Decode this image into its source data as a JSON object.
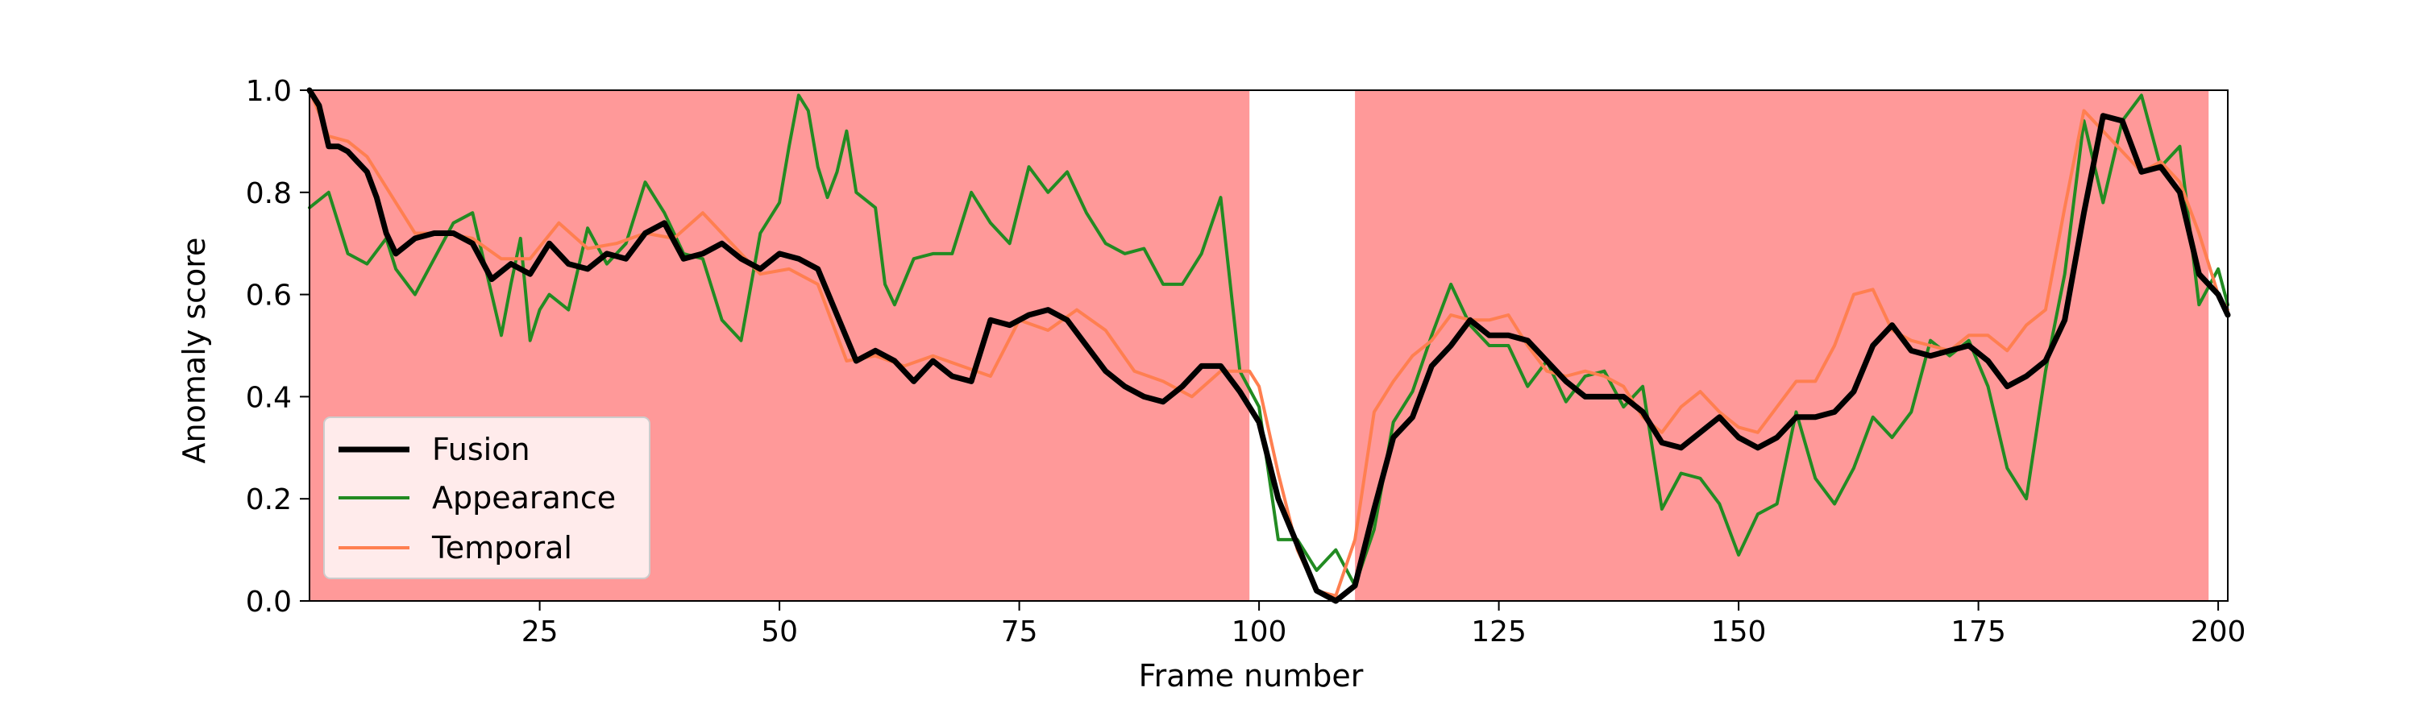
{
  "chart_data": {
    "type": "line",
    "title": "",
    "xlabel": "Frame number",
    "ylabel": "Anomaly score",
    "xlim": [
      1,
      201
    ],
    "ylim": [
      0,
      1
    ],
    "x_ticks": [
      25,
      50,
      75,
      100,
      125,
      150,
      175,
      200
    ],
    "y_ticks": [
      0.0,
      0.2,
      0.4,
      0.6,
      0.8,
      1.0
    ],
    "grid": false,
    "legend_position": "lower-left",
    "anomaly_regions": [
      [
        1,
        99
      ],
      [
        110,
        199
      ]
    ],
    "colors": {
      "region": "#ff9999",
      "fusion": "#000000",
      "appearance": "#228b22",
      "temporal": "#ff7f50"
    },
    "series": [
      {
        "name": "Fusion",
        "x": [
          1,
          2,
          3,
          4,
          5,
          6,
          7,
          8,
          9,
          10,
          12,
          14,
          16,
          18,
          20,
          22,
          24,
          26,
          28,
          30,
          32,
          34,
          36,
          38,
          40,
          42,
          44,
          46,
          48,
          50,
          52,
          54,
          56,
          58,
          60,
          62,
          64,
          66,
          68,
          70,
          72,
          74,
          76,
          78,
          80,
          82,
          84,
          86,
          88,
          90,
          92,
          94,
          96,
          98,
          100,
          102,
          104,
          106,
          108,
          110,
          112,
          114,
          116,
          118,
          120,
          122,
          124,
          126,
          128,
          130,
          132,
          134,
          136,
          138,
          140,
          142,
          144,
          146,
          148,
          150,
          152,
          154,
          156,
          158,
          160,
          162,
          164,
          166,
          168,
          170,
          172,
          174,
          176,
          178,
          180,
          182,
          184,
          186,
          188,
          190,
          192,
          194,
          196,
          198,
          200,
          201
        ],
        "values": [
          1.0,
          0.97,
          0.89,
          0.89,
          0.88,
          0.86,
          0.84,
          0.79,
          0.72,
          0.68,
          0.71,
          0.72,
          0.72,
          0.7,
          0.63,
          0.66,
          0.64,
          0.7,
          0.66,
          0.65,
          0.68,
          0.67,
          0.72,
          0.74,
          0.67,
          0.68,
          0.7,
          0.67,
          0.65,
          0.68,
          0.67,
          0.65,
          0.56,
          0.47,
          0.49,
          0.47,
          0.43,
          0.47,
          0.44,
          0.43,
          0.55,
          0.54,
          0.56,
          0.57,
          0.55,
          0.5,
          0.45,
          0.42,
          0.4,
          0.39,
          0.42,
          0.46,
          0.46,
          0.41,
          0.35,
          0.2,
          0.11,
          0.02,
          0.0,
          0.03,
          0.18,
          0.32,
          0.36,
          0.46,
          0.5,
          0.55,
          0.52,
          0.52,
          0.51,
          0.47,
          0.43,
          0.4,
          0.4,
          0.4,
          0.37,
          0.31,
          0.3,
          0.33,
          0.36,
          0.32,
          0.3,
          0.32,
          0.36,
          0.36,
          0.37,
          0.41,
          0.5,
          0.54,
          0.49,
          0.48,
          0.49,
          0.5,
          0.47,
          0.42,
          0.44,
          0.47,
          0.55,
          0.76,
          0.95,
          0.94,
          0.84,
          0.85,
          0.8,
          0.64,
          0.6,
          0.56
        ]
      },
      {
        "name": "Appearance",
        "x": [
          1,
          3,
          5,
          7,
          9,
          10,
          12,
          14,
          16,
          18,
          20,
          21,
          22,
          23,
          24,
          25,
          26,
          28,
          30,
          32,
          34,
          36,
          38,
          40,
          42,
          44,
          46,
          48,
          50,
          51,
          52,
          53,
          54,
          55,
          56,
          57,
          58,
          60,
          61,
          62,
          64,
          66,
          68,
          70,
          72,
          74,
          76,
          78,
          80,
          82,
          84,
          86,
          88,
          90,
          92,
          94,
          96,
          98,
          100,
          102,
          104,
          106,
          108,
          110,
          112,
          114,
          116,
          118,
          120,
          122,
          124,
          126,
          128,
          130,
          132,
          134,
          136,
          138,
          140,
          142,
          144,
          146,
          148,
          150,
          152,
          154,
          156,
          158,
          160,
          162,
          164,
          166,
          168,
          170,
          172,
          174,
          176,
          178,
          180,
          182,
          184,
          186,
          188,
          190,
          192,
          194,
          196,
          198,
          200,
          201
        ],
        "values": [
          0.77,
          0.8,
          0.68,
          0.66,
          0.71,
          0.65,
          0.6,
          0.67,
          0.74,
          0.76,
          0.6,
          0.52,
          0.62,
          0.71,
          0.51,
          0.57,
          0.6,
          0.57,
          0.73,
          0.66,
          0.7,
          0.82,
          0.76,
          0.68,
          0.67,
          0.55,
          0.51,
          0.72,
          0.78,
          0.89,
          0.99,
          0.96,
          0.85,
          0.79,
          0.84,
          0.92,
          0.8,
          0.77,
          0.62,
          0.58,
          0.67,
          0.68,
          0.68,
          0.8,
          0.74,
          0.7,
          0.85,
          0.8,
          0.84,
          0.76,
          0.7,
          0.68,
          0.69,
          0.62,
          0.62,
          0.68,
          0.79,
          0.45,
          0.38,
          0.12,
          0.12,
          0.06,
          0.1,
          0.03,
          0.14,
          0.35,
          0.41,
          0.52,
          0.62,
          0.54,
          0.5,
          0.5,
          0.42,
          0.47,
          0.39,
          0.44,
          0.45,
          0.38,
          0.42,
          0.18,
          0.25,
          0.24,
          0.19,
          0.09,
          0.17,
          0.19,
          0.37,
          0.24,
          0.19,
          0.26,
          0.36,
          0.32,
          0.37,
          0.51,
          0.48,
          0.51,
          0.42,
          0.26,
          0.2,
          0.45,
          0.64,
          0.94,
          0.78,
          0.94,
          0.99,
          0.85,
          0.89,
          0.58,
          0.65,
          0.58
        ]
      },
      {
        "name": "Temporal",
        "x": [
          1,
          3,
          5,
          7,
          9,
          12,
          15,
          18,
          21,
          24,
          27,
          30,
          33,
          36,
          39,
          42,
          45,
          48,
          51,
          54,
          57,
          60,
          63,
          66,
          69,
          72,
          75,
          78,
          81,
          84,
          87,
          90,
          93,
          96,
          99,
          100,
          102,
          104,
          106,
          108,
          110,
          112,
          114,
          116,
          118,
          120,
          122,
          124,
          126,
          128,
          130,
          132,
          134,
          136,
          138,
          140,
          142,
          144,
          146,
          148,
          150,
          152,
          154,
          156,
          158,
          160,
          162,
          164,
          166,
          168,
          170,
          172,
          174,
          176,
          178,
          180,
          182,
          184,
          186,
          188,
          190,
          192,
          194,
          196,
          198,
          200,
          201
        ],
        "values": [
          1.0,
          0.91,
          0.9,
          0.87,
          0.81,
          0.72,
          0.72,
          0.71,
          0.67,
          0.67,
          0.74,
          0.69,
          0.7,
          0.72,
          0.71,
          0.76,
          0.7,
          0.64,
          0.65,
          0.62,
          0.47,
          0.48,
          0.46,
          0.48,
          0.46,
          0.44,
          0.55,
          0.53,
          0.57,
          0.53,
          0.45,
          0.43,
          0.4,
          0.45,
          0.45,
          0.42,
          0.25,
          0.1,
          0.02,
          0.01,
          0.12,
          0.37,
          0.43,
          0.48,
          0.51,
          0.56,
          0.55,
          0.55,
          0.56,
          0.5,
          0.45,
          0.44,
          0.45,
          0.44,
          0.42,
          0.36,
          0.33,
          0.38,
          0.41,
          0.37,
          0.34,
          0.33,
          0.38,
          0.43,
          0.43,
          0.5,
          0.6,
          0.61,
          0.53,
          0.51,
          0.5,
          0.49,
          0.52,
          0.52,
          0.49,
          0.54,
          0.57,
          0.77,
          0.96,
          0.92,
          0.88,
          0.84,
          0.86,
          0.82,
          0.72,
          0.6,
          0.57
        ]
      }
    ]
  }
}
